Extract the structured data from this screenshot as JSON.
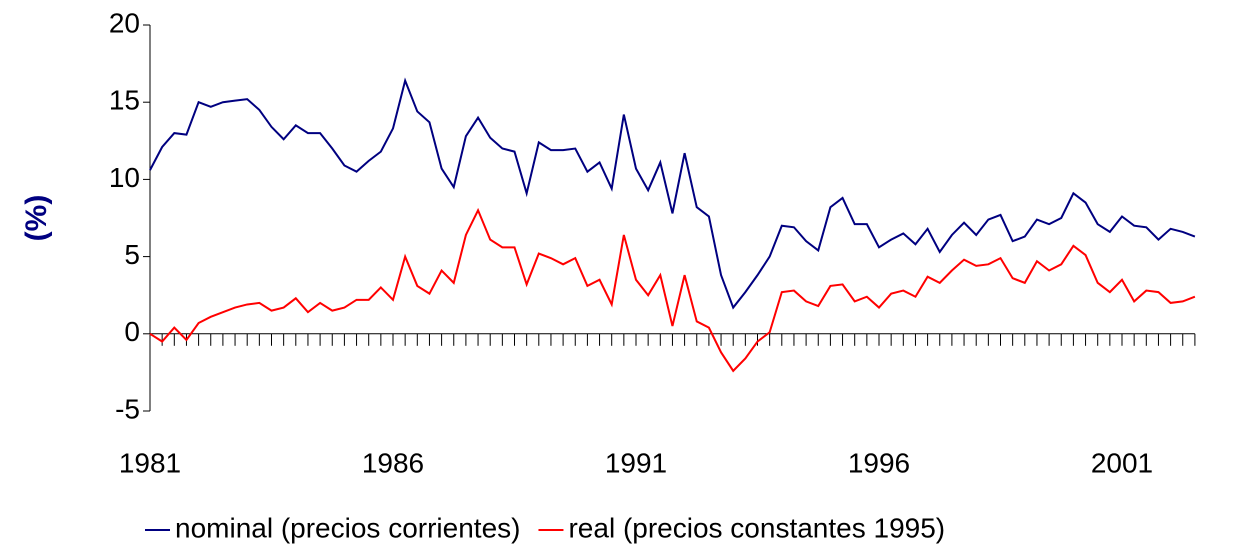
{
  "chart_data": {
    "type": "line",
    "y_label": "(%)",
    "categories": [
      "1981",
      null,
      null,
      null,
      null,
      null,
      null,
      null,
      null,
      null,
      null,
      null,
      null,
      null,
      null,
      null,
      null,
      null,
      null,
      null,
      "1986",
      null,
      null,
      null,
      null,
      null,
      null,
      null,
      null,
      null,
      null,
      null,
      null,
      null,
      null,
      null,
      null,
      null,
      null,
      null,
      "1991",
      null,
      null,
      null,
      null,
      null,
      null,
      null,
      null,
      null,
      null,
      null,
      null,
      null,
      null,
      null,
      null,
      null,
      null,
      null,
      "1996",
      null,
      null,
      null,
      null,
      null,
      null,
      null,
      null,
      null,
      null,
      null,
      null,
      null,
      null,
      null,
      null,
      null,
      null,
      null,
      "2001",
      null,
      null,
      null,
      null,
      null,
      null
    ],
    "series": [
      {
        "name": "nominal (precios corrientes)",
        "color": "#000080",
        "values": [
          10.6,
          12.1,
          13.0,
          12.9,
          15.0,
          14.7,
          15.0,
          15.1,
          15.2,
          14.5,
          13.4,
          12.6,
          13.5,
          13.0,
          13.0,
          12.0,
          10.9,
          10.5,
          11.2,
          11.8,
          13.3,
          16.4,
          14.4,
          13.7,
          10.7,
          9.5,
          12.8,
          14.0,
          12.7,
          12.0,
          11.8,
          9.1,
          12.4,
          11.9,
          11.9,
          12.0,
          10.5,
          11.1,
          9.4,
          14.2,
          10.7,
          9.3,
          11.1,
          7.8,
          11.7,
          8.2,
          7.6,
          3.8,
          1.7,
          2.7,
          3.8,
          5.0,
          7.0,
          6.9,
          6.0,
          5.4,
          8.2,
          8.8,
          7.1,
          7.1,
          5.6,
          6.1,
          6.5,
          5.8,
          6.8,
          5.3,
          6.4,
          7.2,
          6.4,
          7.4,
          7.7,
          6.0,
          6.3,
          7.4,
          7.1,
          7.5,
          9.1,
          8.5,
          7.1,
          6.6,
          7.6,
          7.0,
          6.9,
          6.1,
          6.8,
          6.6,
          6.3
        ]
      },
      {
        "name": "real (precios constantes 1995)",
        "color": "#ff0000",
        "values": [
          0.0,
          -0.5,
          0.4,
          -0.4,
          0.7,
          1.1,
          1.4,
          1.7,
          1.9,
          2.0,
          1.5,
          1.7,
          2.3,
          1.4,
          2.0,
          1.5,
          1.7,
          2.2,
          2.2,
          3.0,
          2.2,
          5.0,
          3.1,
          2.6,
          4.1,
          3.3,
          6.4,
          8.0,
          6.1,
          5.6,
          5.6,
          3.2,
          5.2,
          4.9,
          4.5,
          4.9,
          3.1,
          3.5,
          1.9,
          6.4,
          3.5,
          2.5,
          3.8,
          0.5,
          3.8,
          0.8,
          0.4,
          -1.2,
          -2.4,
          -1.6,
          -0.5,
          0.1,
          2.7,
          2.8,
          2.1,
          1.8,
          3.1,
          3.2,
          2.1,
          2.4,
          1.7,
          2.6,
          2.8,
          2.4,
          3.7,
          3.3,
          4.1,
          4.8,
          4.4,
          4.5,
          4.9,
          3.6,
          3.3,
          4.7,
          4.1,
          4.5,
          5.7,
          5.1,
          3.3,
          2.7,
          3.5,
          2.1,
          2.8,
          2.7,
          2.0,
          2.1,
          2.4
        ]
      }
    ],
    "ylim": [
      -5,
      20
    ],
    "yticks": [
      -5,
      0,
      5,
      10,
      15,
      20
    ],
    "legend": "bottom"
  }
}
